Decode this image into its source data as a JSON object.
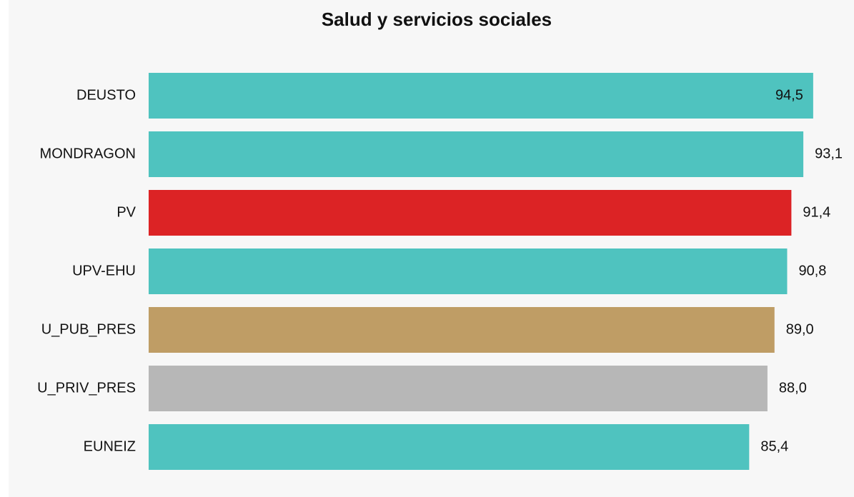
{
  "chart_data": {
    "type": "bar",
    "orientation": "horizontal",
    "title": "Salud y servicios sociales",
    "categories": [
      "DEUSTO",
      "MONDRAGON",
      "PV",
      "UPV-EHU",
      "U_PUB_PRES",
      "U_PRIV_PRES",
      "EUNEIZ"
    ],
    "values": [
      94.5,
      93.1,
      91.4,
      90.8,
      89.0,
      88.0,
      85.4
    ],
    "value_labels": [
      "94,5",
      "93,1",
      "91,4",
      "90,8",
      "89,0",
      "88,0",
      "85,4"
    ],
    "colors": [
      "#4fc3bf",
      "#4fc3bf",
      "#dc2325",
      "#4fc3bf",
      "#bf9d65",
      "#b7b7b7",
      "#4fc3bf"
    ],
    "xlim": [
      0,
      100
    ]
  }
}
